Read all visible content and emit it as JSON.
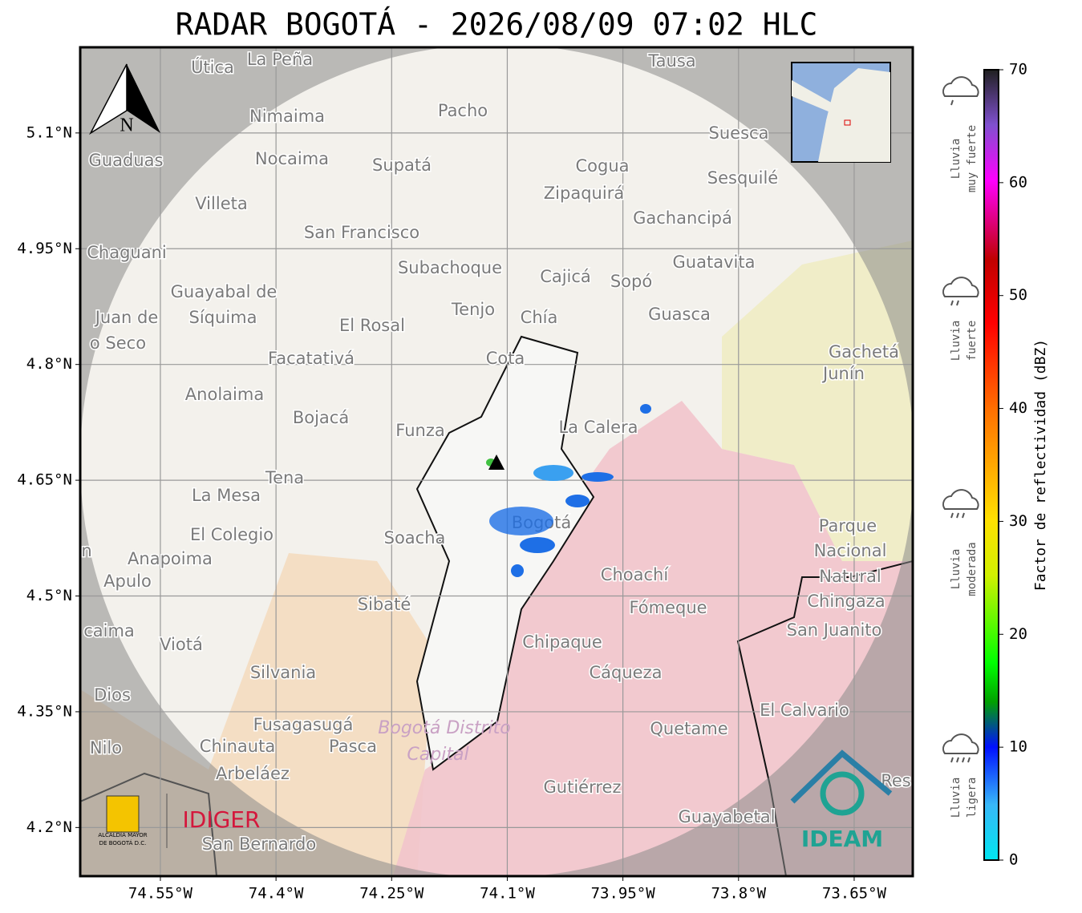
{
  "title": "RADAR BOGOTÁ - 2026/08/09 07:02 HLC",
  "map": {
    "xlim": [
      -74.654,
      -73.574
    ],
    "ylim": [
      4.137,
      5.211
    ],
    "xticks": [
      {
        "value": -74.55,
        "label": "74.55°W"
      },
      {
        "value": -74.4,
        "label": "74.4°W"
      },
      {
        "value": -74.25,
        "label": "74.25°W"
      },
      {
        "value": -74.1,
        "label": "74.1°W"
      },
      {
        "value": -73.95,
        "label": "73.95°W"
      },
      {
        "value": -73.8,
        "label": "73.8°W"
      },
      {
        "value": -73.65,
        "label": "73.65°W"
      }
    ],
    "yticks": [
      {
        "value": 5.1,
        "label": "5.1°N"
      },
      {
        "value": 4.95,
        "label": "4.95°N"
      },
      {
        "value": 4.8,
        "label": "4.8°N"
      },
      {
        "value": 4.65,
        "label": "4.65°N"
      },
      {
        "value": 4.5,
        "label": "4.5°N"
      },
      {
        "value": 4.35,
        "label": "4.35°N"
      },
      {
        "value": 4.2,
        "label": "4.2°N"
      }
    ],
    "grid": true
  },
  "north": "N",
  "places": [
    "La Peña",
    "Útica",
    "Tausa",
    "Pacho",
    "Nimaima",
    "Guaduas",
    "Nocaima",
    "Supatá",
    "Cogua",
    "Suesca",
    "Sesquilé",
    "Zipaquirá",
    "Villeta",
    "Gachancipá",
    "San Francisco",
    "Chaguani",
    "Guatavita",
    "Subachoque",
    "Cajicá",
    "Sopó",
    "Guayabal de",
    "Síquima",
    "Tenjo",
    "Chía",
    "Guasca",
    "Juan de",
    "El Rosal",
    "o Seco",
    "Cota",
    "Facatativá",
    "Gachetá",
    "Junín",
    "Anolaima",
    "Bojacá",
    "La Calera",
    "Funza",
    "Tena",
    "La Mesa",
    "Soacha",
    "El Colegio",
    "Bogotá",
    "Parque",
    "Nacional",
    "Anapoima",
    "Apulo",
    "Natural",
    "Choachí",
    "Chingaza",
    "Sibaté",
    "Fómeque",
    "San Juanito",
    "caima",
    "Chipaque",
    "Viotá",
    "Silvania",
    "Cáqueza",
    "Dios",
    "El Calvario",
    "Fusagasugá",
    "Quetame",
    "Nilo",
    "Chinauta",
    "Pasca",
    "Arbeláez",
    "Gutiérrez",
    "Res",
    "Guayabetal",
    "San Bernardo",
    "n"
  ],
  "district_label": [
    "Bogotá Distrito",
    "Capital"
  ],
  "colorbar": {
    "label": "Factor de reflectividad (dBZ)",
    "lim": [
      0,
      70
    ],
    "ticks": [
      0,
      10,
      20,
      30,
      40,
      50,
      60,
      70
    ]
  },
  "rain_classes": [
    [
      "Lluvia",
      "muy fuerte"
    ],
    [
      "Lluvia",
      "fuerte"
    ],
    [
      "Lluvia",
      "moderada"
    ],
    [
      "Lluvia",
      "ligera"
    ]
  ],
  "logos": {
    "alcaldia": [
      "ALCALDÍA MAYOR",
      "DE BOGOTÁ D.C."
    ],
    "idiger": "IDIGER",
    "ideam": "IDEAM"
  }
}
